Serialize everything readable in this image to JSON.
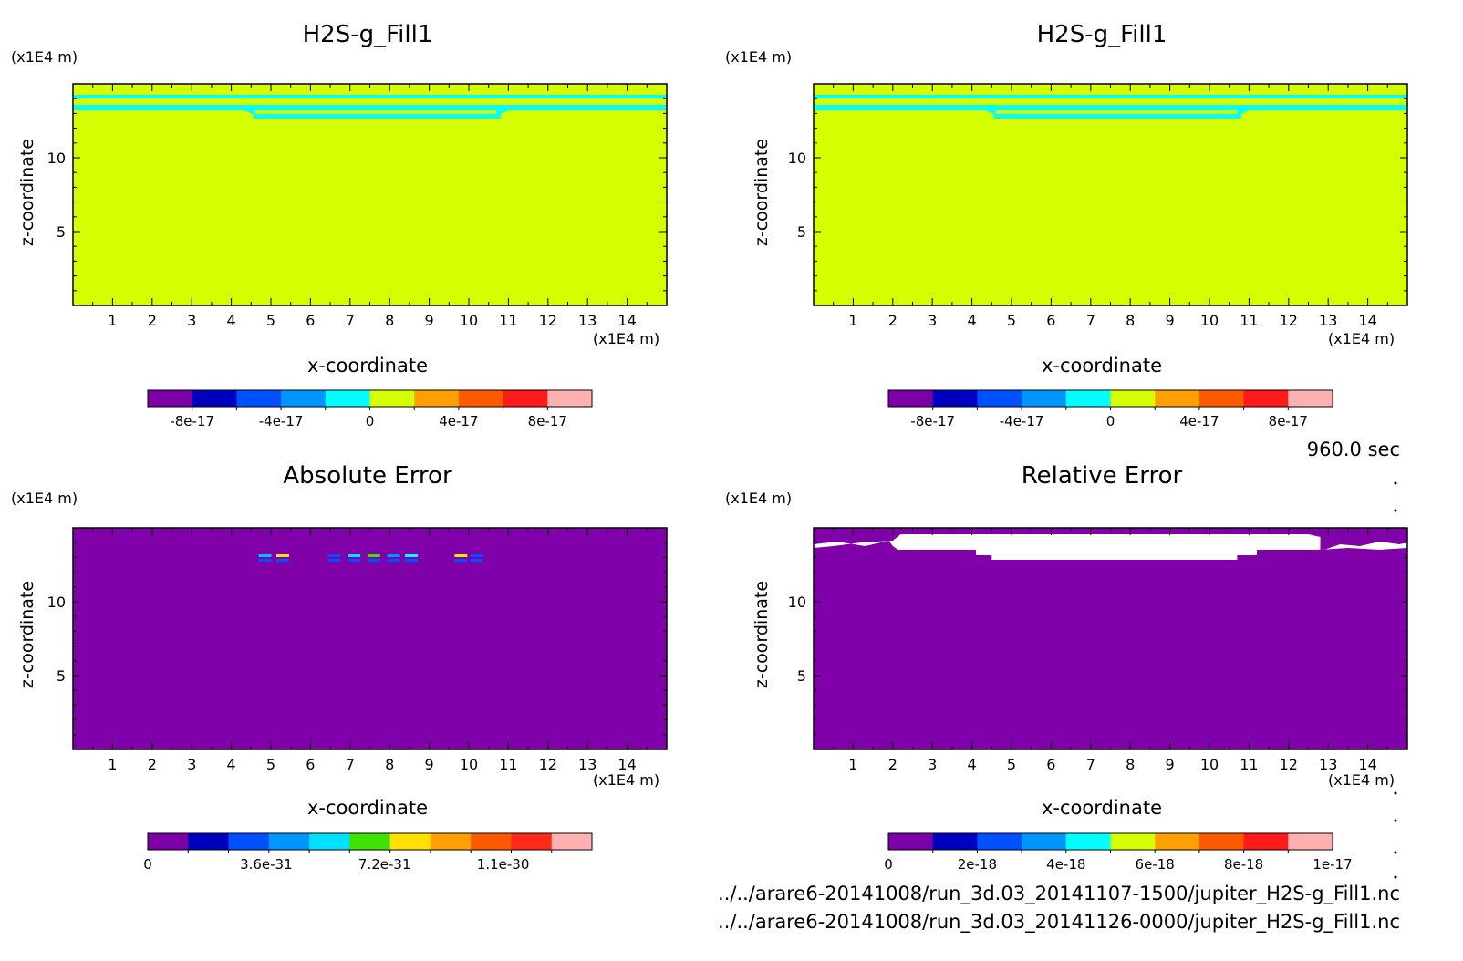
{
  "footer": {
    "time_label": "960.0 sec",
    "file1": "../../arare6-20141008/run_3d.03_20141107-1500/jupiter_H2S-g_Fill1.nc",
    "file2": "../../arare6-20141008/run_3d.03_20141126-0000/jupiter_H2S-g_Fill1.nc"
  },
  "colors": {
    "yellow_green": "#d4ff00",
    "cyan": "#00ffff",
    "purple": "#8000aa",
    "white": "#ffffff"
  },
  "chart_data": [
    {
      "type": "heatmap",
      "title": "H2S-g_Fill1",
      "xlabel": "x-coordinate",
      "ylabel": "z-coordinate",
      "x_unit": "(x1E4 m)",
      "y_unit": "(x1E4 m)",
      "xlim": [
        0,
        15
      ],
      "ylim": [
        0,
        15
      ],
      "x_ticks": [
        1,
        2,
        3,
        4,
        5,
        6,
        7,
        8,
        9,
        10,
        11,
        12,
        13,
        14
      ],
      "y_ticks": [
        5,
        10
      ],
      "background_color": "#d4ff00",
      "colorbar": {
        "colors": [
          "#7b00a8",
          "#0000c0",
          "#0050ff",
          "#0096ff",
          "#00ffff",
          "#d4ff00",
          "#ffa000",
          "#ff5a00",
          "#ff1a1a",
          "#ffb0b0"
        ],
        "tick_labels": [
          "-8e-17",
          "-4e-17",
          "0",
          "4e-17",
          "8e-17"
        ]
      }
    },
    {
      "type": "heatmap",
      "title": "H2S-g_Fill1",
      "xlabel": "x-coordinate",
      "ylabel": "z-coordinate",
      "x_unit": "(x1E4 m)",
      "y_unit": "(x1E4 m)",
      "xlim": [
        0,
        15
      ],
      "ylim": [
        0,
        15
      ],
      "x_ticks": [
        1,
        2,
        3,
        4,
        5,
        6,
        7,
        8,
        9,
        10,
        11,
        12,
        13,
        14
      ],
      "y_ticks": [
        5,
        10
      ],
      "background_color": "#d4ff00",
      "colorbar": {
        "colors": [
          "#7b00a8",
          "#0000c0",
          "#0050ff",
          "#0096ff",
          "#00ffff",
          "#d4ff00",
          "#ffa000",
          "#ff5a00",
          "#ff1a1a",
          "#ffb0b0"
        ],
        "tick_labels": [
          "-8e-17",
          "-4e-17",
          "0",
          "4e-17",
          "8e-17"
        ]
      }
    },
    {
      "type": "heatmap",
      "title": "Absolute Error",
      "xlabel": "x-coordinate",
      "ylabel": "z-coordinate",
      "x_unit": "(x1E4 m)",
      "y_unit": "(x1E4 m)",
      "xlim": [
        0,
        15
      ],
      "ylim": [
        0,
        15
      ],
      "x_ticks": [
        1,
        2,
        3,
        4,
        5,
        6,
        7,
        8,
        9,
        10,
        11,
        12,
        13,
        14
      ],
      "y_ticks": [
        5,
        10
      ],
      "background_color": "#8000aa",
      "colorbar": {
        "colors": [
          "#7b00a8",
          "#0000c0",
          "#0050ff",
          "#0096ff",
          "#00e0ff",
          "#40e000",
          "#ffe000",
          "#ffa000",
          "#ff5a00",
          "#ff2a1a",
          "#ffb0b0"
        ],
        "tick_labels": [
          "0",
          "3.6e-31",
          "7.2e-31",
          "1.1e-30"
        ]
      }
    },
    {
      "type": "heatmap",
      "title": "Relative Error",
      "xlabel": "x-coordinate",
      "ylabel": "z-coordinate",
      "x_unit": "(x1E4 m)",
      "y_unit": "(x1E4 m)",
      "xlim": [
        0,
        15
      ],
      "ylim": [
        0,
        15
      ],
      "x_ticks": [
        1,
        2,
        3,
        4,
        5,
        6,
        7,
        8,
        9,
        10,
        11,
        12,
        13,
        14
      ],
      "y_ticks": [
        5,
        10
      ],
      "background_color": "#8000aa",
      "colorbar": {
        "colors": [
          "#7b00a8",
          "#0000c0",
          "#0050ff",
          "#0096ff",
          "#00ffff",
          "#d4ff00",
          "#ffa000",
          "#ff5a00",
          "#ff1a1a",
          "#ffb0b0"
        ],
        "tick_labels": [
          "0",
          "2e-18",
          "4e-18",
          "6e-18",
          "8e-18",
          "1e-17"
        ]
      }
    }
  ]
}
